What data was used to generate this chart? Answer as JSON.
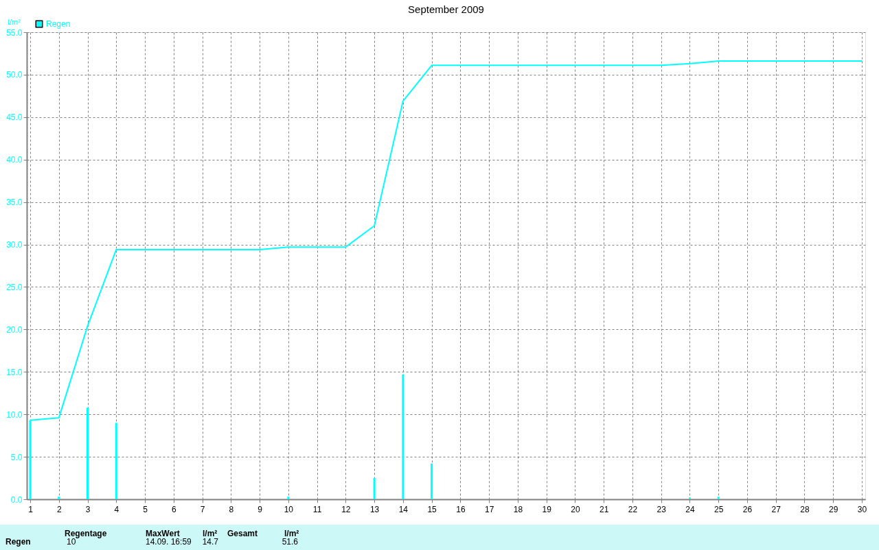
{
  "chart_data": {
    "type": "bar",
    "title": "September 2009",
    "ylabel": "l/m²",
    "x": [
      1,
      2,
      3,
      4,
      5,
      6,
      7,
      8,
      9,
      10,
      11,
      12,
      13,
      14,
      15,
      16,
      17,
      18,
      19,
      20,
      21,
      22,
      23,
      24,
      25,
      26,
      27,
      28,
      29,
      30
    ],
    "series": [
      {
        "name": "Regen",
        "color": "#00ffff",
        "values": [
          9.3,
          0.3,
          10.8,
          9.0,
          0,
          0,
          0,
          0,
          0,
          0.3,
          0,
          0,
          2.5,
          14.7,
          4.2,
          0,
          0,
          0,
          0,
          0,
          0,
          0,
          0,
          0.2,
          0.3,
          0,
          0,
          0,
          0,
          0
        ]
      },
      {
        "type": "line",
        "color": "#00ffff",
        "x": [
          1,
          2,
          3,
          4,
          9,
          10,
          12,
          13,
          14,
          15,
          23,
          24,
          25,
          30
        ],
        "values": [
          9.3,
          9.6,
          20.4,
          29.4,
          29.4,
          29.7,
          29.7,
          32.2,
          46.9,
          51.1,
          51.1,
          51.3,
          51.6,
          51.6
        ]
      }
    ],
    "xlim": [
      1,
      30
    ],
    "xticks": [
      1,
      2,
      3,
      4,
      5,
      6,
      7,
      8,
      9,
      10,
      11,
      12,
      13,
      14,
      15,
      16,
      17,
      18,
      19,
      20,
      21,
      22,
      23,
      24,
      25,
      26,
      27,
      28,
      29,
      30
    ],
    "ylim": [
      0,
      55
    ],
    "yticks": [
      {
        "value": 0,
        "label": "0.0"
      },
      {
        "value": 5,
        "label": "5.0"
      },
      {
        "value": 10,
        "label": "10.0"
      },
      {
        "value": 15,
        "label": "15.0"
      },
      {
        "value": 20,
        "label": "20.0"
      },
      {
        "value": 25,
        "label": "25.0"
      },
      {
        "value": 30,
        "label": "30.0"
      },
      {
        "value": 35,
        "label": "35.0"
      },
      {
        "value": 40,
        "label": "40.0"
      },
      {
        "value": 45,
        "label": "45.0"
      },
      {
        "value": 50,
        "label": "50.0"
      },
      {
        "value": 55,
        "label": "55.0"
      }
    ],
    "grid": true,
    "legend": "top left",
    "marker": "none",
    "line_style": "solid",
    "annotations": [
      "Regen",
      "Regentage",
      "10",
      "MaxWert",
      "l/m²",
      "14.09.  16:59",
      "14.7",
      "Gesamt",
      "l/m²",
      "51.6"
    ]
  }
}
